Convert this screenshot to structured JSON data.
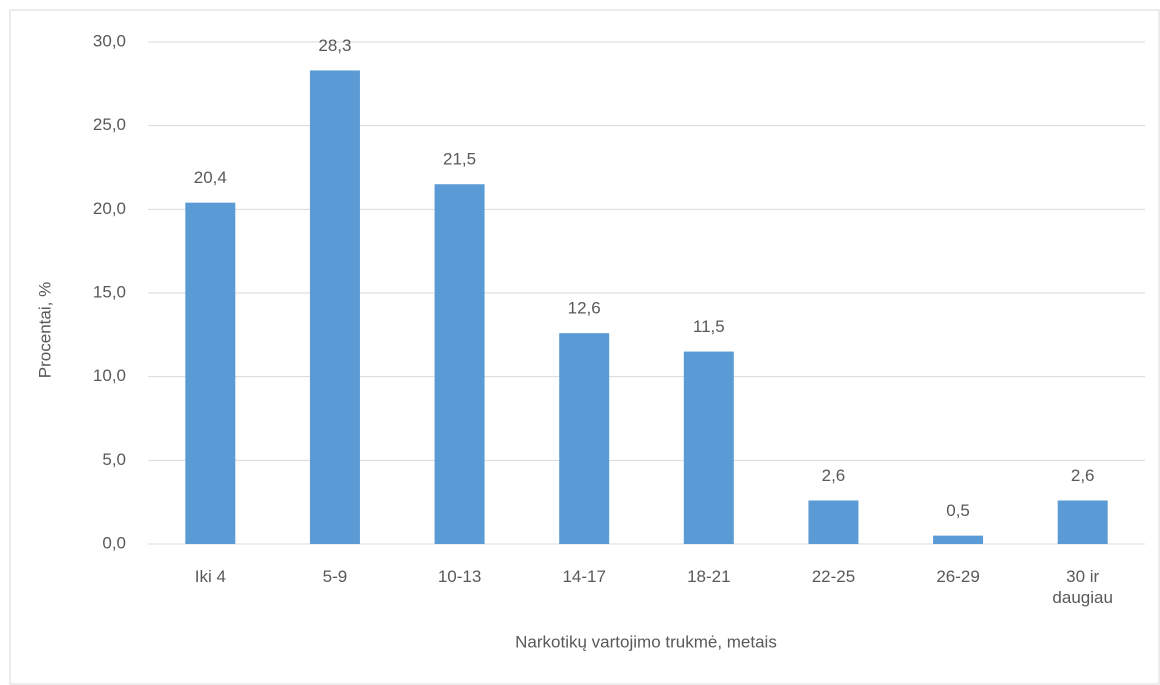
{
  "chart_data": {
    "type": "bar",
    "x_label": "Narkotikų vartojimo trukmė, metais",
    "y_label": "Procentai, %",
    "categories": [
      "Iki 4",
      "5-9",
      "10-13",
      "14-17",
      "18-21",
      "22-25",
      "26-29",
      "30 ir daugiau"
    ],
    "values": [
      20.4,
      28.3,
      21.5,
      12.6,
      11.5,
      2.6,
      0.5,
      2.6
    ],
    "value_labels": [
      "20,4",
      "28,3",
      "21,5",
      "12,6",
      "11,5",
      "2,6",
      "0,5",
      "2,6"
    ],
    "color": "#5b9bd5",
    "ylim": [
      0,
      30
    ],
    "yticks": [
      {
        "value": 0,
        "label": "0,0"
      },
      {
        "value": 5,
        "label": "5,0"
      },
      {
        "value": 10,
        "label": "10,0"
      },
      {
        "value": 15,
        "label": "15,0"
      },
      {
        "value": 20,
        "label": "20,0"
      },
      {
        "value": 25,
        "label": "25,0"
      },
      {
        "value": 30,
        "label": "30,0"
      }
    ],
    "grid": true
  }
}
